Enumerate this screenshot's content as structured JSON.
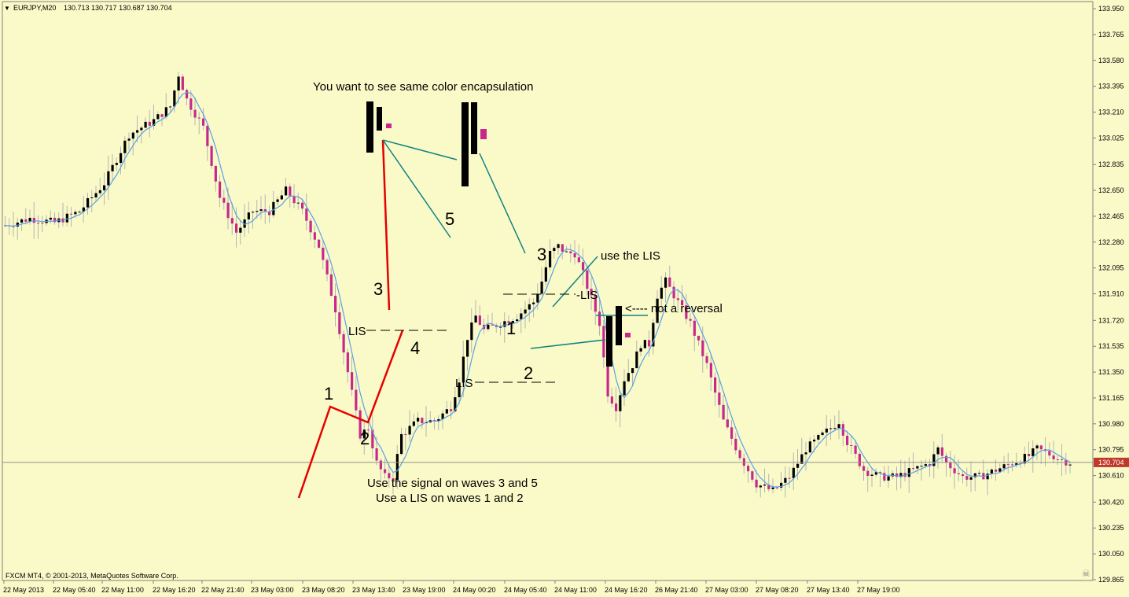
{
  "header": {
    "symbol": "EURJPY,M20",
    "ohlc": "130.713 130.717 130.687 130.704",
    "menu_glyph": "▼"
  },
  "footer": {
    "copyright": "FXCM MT4, © 2001-2013, MetaQuotes Software Corp."
  },
  "colors": {
    "background": "#FAFAC8",
    "bull": "#000000",
    "bear": "#C8288C",
    "wick": "#B4B4B4",
    "ma": "#5AA0E6",
    "annotation_red": "#E60000",
    "annotation_teal": "#128282",
    "price_label_bg": "#C0392B"
  },
  "chart_data": {
    "type": "candlestick",
    "symbol": "EURJPY",
    "timeframe": "M20",
    "ylim": [
      129.865,
      133.95
    ],
    "y_ticks": [
      "133.950",
      "133.765",
      "133.580",
      "133.395",
      "133.210",
      "133.025",
      "132.835",
      "132.650",
      "132.465",
      "132.280",
      "132.095",
      "131.910",
      "131.720",
      "131.535",
      "131.350",
      "131.165",
      "130.980",
      "130.795",
      "130.610",
      "130.420",
      "130.235",
      "130.050",
      "129.865"
    ],
    "x_ticks": [
      "22 May 2013",
      "22 May 05:40",
      "22 May 11:00",
      "22 May 16:20",
      "22 May 21:40",
      "23 May 03:00",
      "23 May 08:20",
      "23 May 13:40",
      "23 May 19:00",
      "24 May 00:20",
      "24 May 05:40",
      "24 May 11:00",
      "24 May 16:20",
      "26 May 21:40",
      "27 May 03:00",
      "27 May 08:20",
      "27 May 13:40",
      "27 May 19:00"
    ],
    "current_price": "130.704",
    "close_path": [
      [
        0,
        132.4
      ],
      [
        6,
        132.45
      ],
      [
        12,
        132.42
      ],
      [
        18,
        132.5
      ],
      [
        24,
        132.7
      ],
      [
        30,
        133.05
      ],
      [
        36,
        133.15
      ],
      [
        40,
        133.25
      ],
      [
        42,
        133.48
      ],
      [
        44,
        133.3
      ],
      [
        48,
        133.1
      ],
      [
        52,
        132.6
      ],
      [
        56,
        132.35
      ],
      [
        60,
        132.5
      ],
      [
        64,
        132.5
      ],
      [
        68,
        132.65
      ],
      [
        72,
        132.5
      ],
      [
        76,
        132.25
      ],
      [
        80,
        131.8
      ],
      [
        84,
        131.2
      ],
      [
        86,
        130.9
      ],
      [
        88,
        130.95
      ],
      [
        90,
        130.7
      ],
      [
        92,
        130.6
      ],
      [
        94,
        130.6
      ],
      [
        96,
        130.9
      ],
      [
        100,
        131.0
      ],
      [
        104,
        131.0
      ],
      [
        108,
        131.1
      ],
      [
        110,
        131.3
      ],
      [
        112,
        131.6
      ],
      [
        114,
        131.75
      ],
      [
        116,
        131.65
      ],
      [
        120,
        131.7
      ],
      [
        124,
        131.75
      ],
      [
        128,
        131.85
      ],
      [
        130,
        132.0
      ],
      [
        132,
        132.2
      ],
      [
        134,
        132.25
      ],
      [
        136,
        132.2
      ],
      [
        138,
        132.2
      ],
      [
        140,
        132.05
      ],
      [
        144,
        131.7
      ],
      [
        146,
        131.2
      ],
      [
        148,
        131.1
      ],
      [
        150,
        131.3
      ],
      [
        152,
        131.4
      ],
      [
        154,
        131.55
      ],
      [
        156,
        131.55
      ],
      [
        158,
        131.9
      ],
      [
        160,
        132.0
      ],
      [
        162,
        131.9
      ],
      [
        166,
        131.7
      ],
      [
        170,
        131.4
      ],
      [
        174,
        131.0
      ],
      [
        178,
        130.75
      ],
      [
        182,
        130.55
      ],
      [
        186,
        130.5
      ],
      [
        190,
        130.6
      ],
      [
        194,
        130.8
      ],
      [
        198,
        130.9
      ],
      [
        202,
        131.0
      ],
      [
        204,
        130.85
      ],
      [
        208,
        130.65
      ],
      [
        212,
        130.6
      ],
      [
        216,
        130.6
      ],
      [
        220,
        130.65
      ],
      [
        224,
        130.7
      ],
      [
        226,
        130.8
      ],
      [
        228,
        130.7
      ],
      [
        232,
        130.6
      ],
      [
        236,
        130.6
      ],
      [
        240,
        130.65
      ],
      [
        244,
        130.7
      ],
      [
        248,
        130.75
      ],
      [
        250,
        130.8
      ],
      [
        254,
        130.75
      ],
      [
        256,
        130.72
      ],
      [
        258,
        130.704
      ]
    ],
    "annotations": {
      "title": "You want to see same color encapsulation",
      "wave_labels": [
        "1",
        "2",
        "3",
        "4",
        "5",
        "3",
        "1",
        "2"
      ],
      "lis_labels": [
        "LIS",
        "LIS",
        "-LIS"
      ],
      "use_lis": "use the LIS",
      "not_reversal": "<---- not a reversal",
      "footnote_line1": "Use the signal on waves 3 and 5",
      "footnote_line2": "Use a LIS on waves 1 and 2"
    }
  }
}
